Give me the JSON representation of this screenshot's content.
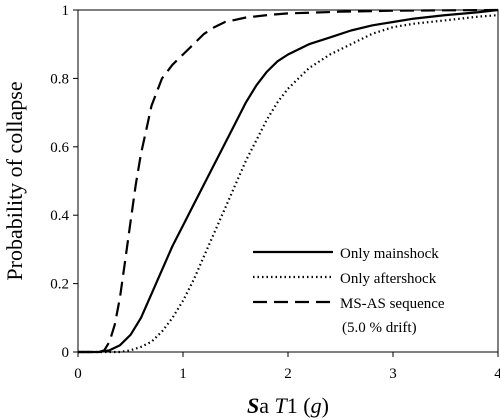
{
  "chart_data": {
    "type": "line",
    "title": "",
    "xlabel": {
      "s_bold": "S",
      "a": "a",
      "space": " ",
      "t_italic": "T",
      "one": "1",
      "paren_open": " (",
      "g_italic": "g",
      "paren_close": ")"
    },
    "ylabel": "Probability of collapse",
    "xlim": [
      0,
      4
    ],
    "ylim": [
      0,
      1
    ],
    "xticks": [
      "0",
      "1",
      "2",
      "3",
      "4"
    ],
    "yticks": [
      "0",
      "0.2",
      "0.4",
      "0.6",
      "0.8",
      "1"
    ],
    "grid": false,
    "legend_position": "bottom-right",
    "series": [
      {
        "name": "Only mainshock",
        "style": "solid",
        "x": [
          0,
          0.2,
          0.3,
          0.4,
          0.5,
          0.6,
          0.7,
          0.8,
          0.9,
          1.0,
          1.1,
          1.2,
          1.3,
          1.4,
          1.5,
          1.6,
          1.7,
          1.8,
          1.9,
          2.0,
          2.2,
          2.4,
          2.6,
          2.8,
          3.0,
          3.2,
          3.5,
          3.8,
          4.0
        ],
        "values": [
          0,
          0,
          0.005,
          0.02,
          0.05,
          0.1,
          0.17,
          0.24,
          0.31,
          0.37,
          0.43,
          0.49,
          0.55,
          0.61,
          0.67,
          0.73,
          0.78,
          0.82,
          0.85,
          0.87,
          0.9,
          0.92,
          0.94,
          0.955,
          0.965,
          0.975,
          0.985,
          0.993,
          1.0
        ]
      },
      {
        "name": "Only aftershock",
        "style": "dotted",
        "x": [
          0,
          0.4,
          0.5,
          0.6,
          0.7,
          0.8,
          0.9,
          1.0,
          1.1,
          1.2,
          1.3,
          1.4,
          1.5,
          1.6,
          1.7,
          1.8,
          1.9,
          2.0,
          2.1,
          2.2,
          2.4,
          2.6,
          2.8,
          3.0,
          3.2,
          3.5,
          3.8,
          4.0
        ],
        "values": [
          0,
          0,
          0.005,
          0.015,
          0.03,
          0.06,
          0.1,
          0.15,
          0.21,
          0.28,
          0.35,
          0.42,
          0.49,
          0.56,
          0.62,
          0.68,
          0.73,
          0.77,
          0.8,
          0.83,
          0.87,
          0.9,
          0.93,
          0.95,
          0.96,
          0.97,
          0.98,
          0.985
        ]
      },
      {
        "name": "MS-AS sequence",
        "style": "dashed",
        "x": [
          0,
          0.2,
          0.25,
          0.3,
          0.35,
          0.4,
          0.45,
          0.5,
          0.55,
          0.6,
          0.65,
          0.7,
          0.8,
          0.9,
          1.0,
          1.1,
          1.2,
          1.3,
          1.4,
          1.6,
          1.8,
          2.0,
          2.5,
          3.0,
          3.5,
          4.0
        ],
        "values": [
          0,
          0,
          0.005,
          0.03,
          0.08,
          0.16,
          0.27,
          0.38,
          0.49,
          0.58,
          0.65,
          0.72,
          0.8,
          0.84,
          0.87,
          0.9,
          0.93,
          0.95,
          0.965,
          0.978,
          0.985,
          0.99,
          0.995,
          0.998,
          0.999,
          1.0
        ]
      }
    ],
    "legend_note": "(5.0 % drift)"
  }
}
